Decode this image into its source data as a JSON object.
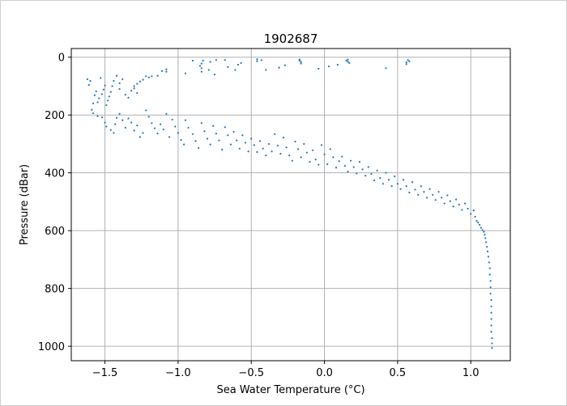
{
  "chart_data": {
    "type": "scatter",
    "title": "1902687",
    "xlabel": "Sea Water Temperature (°C)",
    "ylabel": "Pressure (dBar)",
    "xlim": [
      -1.73,
      1.27
    ],
    "ylim": [
      1050,
      -30
    ],
    "y_inverted": true,
    "grid": true,
    "marker_color": "#1f77b4",
    "x_ticks": [
      -1.5,
      -1.0,
      -0.5,
      0.0,
      0.5,
      1.0
    ],
    "x_tick_labels": [
      "−1.5",
      "−1.0",
      "−0.5",
      "0.0",
      "0.5",
      "1.0"
    ],
    "y_ticks": [
      0,
      200,
      400,
      600,
      800,
      1000
    ],
    "y_tick_labels": [
      "0",
      "200",
      "400",
      "600",
      "800",
      "1000"
    ],
    "series": [
      {
        "points": [
          [
            0.57,
            10
          ],
          [
            0.58,
            14
          ],
          [
            0.56,
            18
          ],
          [
            0.56,
            24
          ],
          [
            0.42,
            38
          ],
          [
            0.16,
            8
          ],
          [
            0.15,
            12
          ],
          [
            0.16,
            16
          ],
          [
            0.17,
            20
          ],
          [
            0.09,
            26
          ],
          [
            0.03,
            32
          ],
          [
            -0.04,
            40
          ],
          [
            -0.17,
            8
          ],
          [
            -0.17,
            12
          ],
          [
            -0.16,
            16
          ],
          [
            -0.16,
            22
          ],
          [
            -0.27,
            28
          ],
          [
            -0.31,
            36
          ],
          [
            -0.4,
            44
          ],
          [
            -0.46,
            7
          ],
          [
            -0.43,
            10
          ],
          [
            -0.46,
            14
          ],
          [
            -0.57,
            20
          ],
          [
            -0.59,
            26
          ],
          [
            -0.66,
            34
          ],
          [
            -0.61,
            44
          ],
          [
            -0.68,
            10
          ],
          [
            -0.74,
            10
          ],
          [
            -0.78,
            16
          ],
          [
            -0.83,
            12
          ],
          [
            -0.84,
            22
          ],
          [
            -0.85,
            30
          ],
          [
            -0.84,
            38
          ],
          [
            -0.84,
            50
          ],
          [
            -0.79,
            44
          ],
          [
            -0.75,
            60
          ],
          [
            -0.9,
            12
          ],
          [
            -0.95,
            56
          ],
          [
            -1.08,
            42
          ],
          [
            -1.14,
            64
          ],
          [
            -1.08,
            50
          ],
          [
            -1.11,
            48
          ],
          [
            -1.18,
            66
          ],
          [
            -1.2,
            70
          ],
          [
            -1.22,
            66
          ],
          [
            -1.24,
            78
          ],
          [
            -1.26,
            84
          ],
          [
            -1.28,
            92
          ],
          [
            -1.3,
            108
          ],
          [
            -1.28,
            124
          ],
          [
            -1.3,
            100
          ],
          [
            -1.32,
            116
          ],
          [
            -1.34,
            140
          ],
          [
            -1.36,
            130
          ],
          [
            -1.38,
            76
          ],
          [
            -1.4,
            90
          ],
          [
            -1.4,
            110
          ],
          [
            -1.42,
            64
          ],
          [
            -1.44,
            82
          ],
          [
            -1.45,
            100
          ],
          [
            -1.46,
            120
          ],
          [
            -1.47,
            136
          ],
          [
            -1.48,
            150
          ],
          [
            -1.49,
            166
          ],
          [
            -1.5,
            98
          ],
          [
            -1.51,
            112
          ],
          [
            -1.52,
            128
          ],
          [
            -1.53,
            72
          ],
          [
            -1.54,
            142
          ],
          [
            -1.55,
            156
          ],
          [
            -1.56,
            118
          ],
          [
            -1.57,
            132
          ],
          [
            -1.58,
            160
          ],
          [
            -1.59,
            182
          ],
          [
            -1.6,
            82
          ],
          [
            -1.61,
            96
          ],
          [
            -1.62,
            76
          ],
          [
            -1.58,
            194
          ],
          [
            -1.55,
            204
          ],
          [
            -1.52,
            208
          ],
          [
            -1.5,
            226
          ],
          [
            -1.49,
            240
          ],
          [
            -1.46,
            252
          ],
          [
            -1.44,
            262
          ],
          [
            -1.43,
            232
          ],
          [
            -1.42,
            210
          ],
          [
            -1.4,
            196
          ],
          [
            -1.38,
            218
          ],
          [
            -1.36,
            244
          ],
          [
            -1.34,
            212
          ],
          [
            -1.32,
            226
          ],
          [
            -1.3,
            254
          ],
          [
            -1.28,
            236
          ],
          [
            -1.26,
            276
          ],
          [
            -1.24,
            262
          ],
          [
            -1.22,
            184
          ],
          [
            -1.2,
            206
          ],
          [
            -1.18,
            228
          ],
          [
            -1.16,
            246
          ],
          [
            -1.14,
            264
          ],
          [
            -1.12,
            232
          ],
          [
            -1.1,
            250
          ],
          [
            -1.08,
            196
          ],
          [
            -1.06,
            276
          ],
          [
            -1.04,
            216
          ],
          [
            -1.02,
            240
          ],
          [
            -1.0,
            262
          ],
          [
            -0.98,
            286
          ],
          [
            -0.96,
            302
          ],
          [
            -0.95,
            218
          ],
          [
            -0.93,
            244
          ],
          [
            -0.9,
            266
          ],
          [
            -0.88,
            290
          ],
          [
            -0.86,
            314
          ],
          [
            -0.84,
            228
          ],
          [
            -0.82,
            256
          ],
          [
            -0.8,
            282
          ],
          [
            -0.78,
            302
          ],
          [
            -0.76,
            238
          ],
          [
            -0.74,
            264
          ],
          [
            -0.72,
            288
          ],
          [
            -0.7,
            320
          ],
          [
            -0.68,
            242
          ],
          [
            -0.66,
            270
          ],
          [
            -0.64,
            302
          ],
          [
            -0.62,
            258
          ],
          [
            -0.6,
            288
          ],
          [
            -0.58,
            316
          ],
          [
            -0.56,
            270
          ],
          [
            -0.54,
            296
          ],
          [
            -0.52,
            326
          ],
          [
            -0.5,
            282
          ],
          [
            -0.48,
            304
          ],
          [
            -0.46,
            328
          ],
          [
            -0.44,
            290
          ],
          [
            -0.42,
            316
          ],
          [
            -0.4,
            340
          ],
          [
            -0.38,
            300
          ],
          [
            -0.36,
            326
          ],
          [
            -0.34,
            266
          ],
          [
            -0.32,
            306
          ],
          [
            -0.3,
            334
          ],
          [
            -0.28,
            278
          ],
          [
            -0.26,
            312
          ],
          [
            -0.24,
            340
          ],
          [
            -0.22,
            358
          ],
          [
            -0.2,
            292
          ],
          [
            -0.18,
            318
          ],
          [
            -0.16,
            346
          ],
          [
            -0.14,
            300
          ],
          [
            -0.12,
            330
          ],
          [
            -0.1,
            362
          ],
          [
            -0.08,
            322
          ],
          [
            -0.06,
            354
          ],
          [
            -0.04,
            372
          ],
          [
            -0.02,
            304
          ],
          [
            0.0,
            336
          ],
          [
            0.02,
            370
          ],
          [
            0.04,
            318
          ],
          [
            0.06,
            346
          ],
          [
            0.08,
            382
          ],
          [
            0.1,
            360
          ],
          [
            0.12,
            344
          ],
          [
            0.14,
            376
          ],
          [
            0.16,
            396
          ],
          [
            0.18,
            358
          ],
          [
            0.2,
            380
          ],
          [
            0.22,
            402
          ],
          [
            0.24,
            362
          ],
          [
            0.26,
            388
          ],
          [
            0.28,
            410
          ],
          [
            0.3,
            380
          ],
          [
            0.32,
            404
          ],
          [
            0.34,
            426
          ],
          [
            0.36,
            392
          ],
          [
            0.38,
            418
          ],
          [
            0.4,
            438
          ],
          [
            0.42,
            400
          ],
          [
            0.44,
            424
          ],
          [
            0.46,
            446
          ],
          [
            0.48,
            412
          ],
          [
            0.5,
            438
          ],
          [
            0.52,
            456
          ],
          [
            0.54,
            424
          ],
          [
            0.56,
            446
          ],
          [
            0.58,
            468
          ],
          [
            0.6,
            432
          ],
          [
            0.62,
            458
          ],
          [
            0.64,
            476
          ],
          [
            0.66,
            446
          ],
          [
            0.68,
            466
          ],
          [
            0.7,
            486
          ],
          [
            0.72,
            456
          ],
          [
            0.74,
            476
          ],
          [
            0.76,
            494
          ],
          [
            0.78,
            466
          ],
          [
            0.8,
            486
          ],
          [
            0.82,
            506
          ],
          [
            0.84,
            478
          ],
          [
            0.86,
            498
          ],
          [
            0.88,
            516
          ],
          [
            0.9,
            492
          ],
          [
            0.92,
            510
          ],
          [
            0.94,
            528
          ],
          [
            0.96,
            506
          ],
          [
            0.98,
            524
          ],
          [
            1.0,
            542
          ],
          [
            1.02,
            530
          ],
          [
            1.03,
            552
          ],
          [
            1.04,
            566
          ],
          [
            1.05,
            572
          ],
          [
            1.06,
            580
          ],
          [
            1.07,
            590
          ],
          [
            1.08,
            598
          ],
          [
            1.09,
            604
          ],
          [
            1.095,
            614
          ],
          [
            1.1,
            626
          ],
          [
            1.105,
            640
          ],
          [
            1.11,
            656
          ],
          [
            1.115,
            672
          ],
          [
            1.12,
            690
          ],
          [
            1.125,
            710
          ],
          [
            1.13,
            730
          ],
          [
            1.13,
            752
          ],
          [
            1.135,
            774
          ],
          [
            1.135,
            796
          ],
          [
            1.135,
            818
          ],
          [
            1.14,
            840
          ],
          [
            1.14,
            862
          ],
          [
            1.14,
            884
          ],
          [
            1.14,
            906
          ],
          [
            1.14,
            928
          ],
          [
            1.14,
            950
          ],
          [
            1.145,
            972
          ],
          [
            1.145,
            990
          ],
          [
            1.145,
            1006
          ]
        ]
      }
    ]
  }
}
